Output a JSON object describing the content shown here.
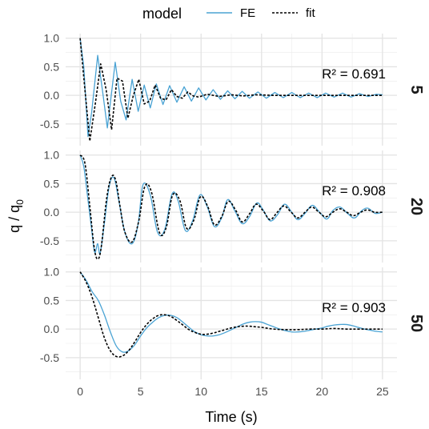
{
  "legend": {
    "title": "model",
    "entries": [
      {
        "label": "FE",
        "color": "#4aa3d4",
        "dash": "solid"
      },
      {
        "label": "fit",
        "color": "#000000",
        "dash": "dotted"
      }
    ]
  },
  "chart_data": {
    "type": "line",
    "xlabel": "Time (s)",
    "ylabel": "q / q0",
    "xlim": [
      -1.2,
      26.2
    ],
    "ylim": [
      -0.88,
      1.08
    ],
    "x_ticks": [
      "0",
      "5",
      "10",
      "15",
      "20",
      "25"
    ],
    "y_ticks": [
      "1.0",
      "0.5",
      "0.0",
      "-0.5"
    ],
    "grid": true,
    "legend_position": "top",
    "panels": [
      {
        "strip": "5",
        "r2_label": "R² = 0.691",
        "series": [
          {
            "name": "FE",
            "x": [
              0,
              0.3,
              0.65,
              0.95,
              1.45,
              1.9,
              2.25,
              2.9,
              3.35,
              3.8,
              4.3,
              4.8,
              5.3,
              5.8,
              6.3,
              6.85,
              7.4,
              8.0,
              8.6,
              9.2,
              9.8,
              10.4,
              11.0,
              11.6,
              12.2,
              12.8,
              13.4,
              14.0,
              14.7,
              15.4,
              16.1,
              16.8,
              17.5,
              18.2,
              18.9,
              19.6,
              20.3,
              21.0,
              21.7,
              22.4,
              23.1,
              23.8,
              24.5,
              25.0
            ],
            "y": [
              1.0,
              0.5,
              -0.72,
              -0.3,
              0.7,
              0.0,
              -0.57,
              0.58,
              -0.1,
              -0.43,
              0.28,
              -0.28,
              0.18,
              -0.22,
              0.2,
              -0.16,
              0.17,
              -0.12,
              0.15,
              -0.1,
              0.13,
              -0.08,
              0.1,
              -0.07,
              0.08,
              -0.06,
              0.07,
              -0.05,
              0.06,
              -0.05,
              0.05,
              -0.04,
              0.05,
              -0.04,
              0.04,
              -0.04,
              0.04,
              -0.03,
              0.04,
              -0.03,
              0.03,
              -0.02,
              0.02,
              0.01
            ]
          },
          {
            "name": "fit",
            "x": [
              0,
              0.35,
              0.8,
              1.25,
              1.7,
              2.15,
              2.6,
              3.05,
              3.5,
              3.95,
              4.4,
              4.85,
              5.3,
              5.75,
              6.2,
              6.65,
              7.1,
              7.55,
              8.0,
              8.45,
              8.9,
              9.35,
              9.8,
              10.5,
              11.5,
              12.5,
              13.5,
              14.5,
              16,
              18,
              20,
              22,
              25
            ],
            "y": [
              1.0,
              0.2,
              -0.8,
              -0.15,
              0.55,
              0.1,
              -0.6,
              0.3,
              0.25,
              -0.4,
              0.0,
              0.28,
              -0.15,
              -0.1,
              0.18,
              -0.05,
              -0.08,
              0.1,
              -0.02,
              -0.05,
              0.06,
              -0.01,
              -0.03,
              0.02,
              -0.02,
              0.01,
              -0.01,
              0.01,
              0.0,
              0.0,
              0.0,
              0.0,
              0.0
            ]
          }
        ]
      },
      {
        "strip": "20",
        "r2_label": "R² = 0.908",
        "series": [
          {
            "name": "FE",
            "x": [
              0,
              0.3,
              0.6,
              0.95,
              1.2,
              1.45,
              1.65,
              2.0,
              2.4,
              2.8,
              3.2,
              3.7,
              4.3,
              4.8,
              5.2,
              5.8,
              6.4,
              7.0,
              7.6,
              8.1,
              8.7,
              9.3,
              9.9,
              10.5,
              11.1,
              11.7,
              12.2,
              12.8,
              13.4,
              14.0,
              14.6,
              15.1,
              15.7,
              16.3,
              16.9,
              17.5,
              18.0,
              18.6,
              19.2,
              19.8,
              20.4,
              20.9,
              21.5,
              22.1,
              22.7,
              23.3,
              23.8,
              24.4,
              25.0
            ],
            "y": [
              1.0,
              0.8,
              0.3,
              -0.3,
              -0.7,
              -0.55,
              -0.72,
              -0.2,
              0.45,
              0.6,
              0.2,
              -0.35,
              -0.55,
              -0.2,
              0.48,
              0.3,
              -0.35,
              -0.3,
              0.32,
              0.2,
              -0.32,
              -0.15,
              0.3,
              0.1,
              -0.25,
              -0.1,
              0.22,
              0.02,
              -0.2,
              -0.08,
              0.16,
              0.05,
              -0.15,
              -0.05,
              0.14,
              0.0,
              -0.13,
              -0.02,
              0.12,
              0.0,
              -0.12,
              0.03,
              0.09,
              -0.02,
              -0.1,
              0.03,
              0.07,
              -0.02,
              0.0
            ],
            "smooth": true
          },
          {
            "name": "fit",
            "x": [
              0,
              0.4,
              0.8,
              1.15,
              1.45,
              1.75,
              2.2,
              2.6,
              2.95,
              3.3,
              3.7,
              4.3,
              4.85,
              5.35,
              5.9,
              6.55,
              7.1,
              7.65,
              8.25,
              8.8,
              9.4,
              9.95,
              10.55,
              11.1,
              11.7,
              12.25,
              12.85,
              13.4,
              14.0,
              14.55,
              15.15,
              15.7,
              16.3,
              16.85,
              17.45,
              18.0,
              18.6,
              19.15,
              19.75,
              20.3,
              20.9,
              21.45,
              22.05,
              22.6,
              23.2,
              23.75,
              24.35,
              25.0
            ],
            "y": [
              1.0,
              0.85,
              0.1,
              -0.6,
              -0.82,
              -0.6,
              0.25,
              0.62,
              0.55,
              0.1,
              -0.35,
              -0.52,
              -0.15,
              0.45,
              0.35,
              -0.35,
              -0.28,
              0.3,
              0.2,
              -0.28,
              -0.14,
              0.27,
              0.1,
              -0.22,
              -0.08,
              0.19,
              0.04,
              -0.17,
              -0.03,
              0.14,
              0.02,
              -0.13,
              0.0,
              0.11,
              0.0,
              -0.1,
              0.0,
              0.09,
              0.0,
              -0.08,
              0.0,
              0.06,
              0.0,
              -0.06,
              0.0,
              0.04,
              0.0,
              0.0
            ],
            "smooth": true
          }
        ]
      },
      {
        "strip": "50",
        "r2_label": "R² = 0.903",
        "series": [
          {
            "name": "FE",
            "x": [
              0,
              0.5,
              1.0,
              1.5,
              2.0,
              2.5,
              3.0,
              3.5,
              4.0,
              4.5,
              5.0,
              5.5,
              6.0,
              6.5,
              7.0,
              7.5,
              8.0,
              8.5,
              9.0,
              9.5,
              10,
              10.5,
              11,
              11.5,
              12,
              12.5,
              13,
              13.5,
              14,
              14.5,
              15,
              15.5,
              16,
              16.5,
              17,
              17.5,
              18,
              18.5,
              19,
              19.5,
              20,
              20.5,
              21,
              21.5,
              22,
              22.5,
              23,
              23.5,
              24,
              24.5,
              25
            ],
            "y": [
              1.0,
              0.85,
              0.65,
              0.5,
              0.25,
              -0.05,
              -0.3,
              -0.4,
              -0.38,
              -0.28,
              -0.12,
              0.02,
              0.12,
              0.2,
              0.24,
              0.24,
              0.2,
              0.12,
              0.03,
              -0.05,
              -0.1,
              -0.12,
              -0.12,
              -0.1,
              -0.06,
              -0.01,
              0.04,
              0.09,
              0.12,
              0.13,
              0.12,
              0.08,
              0.04,
              0.0,
              -0.03,
              -0.05,
              -0.05,
              -0.04,
              -0.02,
              0.0,
              0.02,
              0.05,
              0.07,
              0.08,
              0.08,
              0.06,
              0.03,
              0.0,
              -0.02,
              -0.04,
              -0.05
            ],
            "smooth": true
          },
          {
            "name": "fit",
            "x": [
              0,
              0.5,
              1.0,
              1.5,
              2.0,
              2.5,
              3.0,
              3.5,
              4.0,
              4.5,
              5.0,
              5.5,
              6.0,
              6.5,
              7.0,
              7.5,
              8.0,
              8.5,
              9.0,
              9.5,
              10,
              10.5,
              11,
              11.5,
              12,
              12.5,
              13,
              13.5,
              14,
              14.5,
              15,
              16,
              17,
              18,
              19,
              20,
              21,
              22,
              23,
              24,
              25
            ],
            "y": [
              1.0,
              0.82,
              0.55,
              0.2,
              -0.15,
              -0.38,
              -0.48,
              -0.47,
              -0.38,
              -0.23,
              -0.06,
              0.08,
              0.18,
              0.24,
              0.25,
              0.22,
              0.15,
              0.07,
              -0.01,
              -0.06,
              -0.09,
              -0.09,
              -0.07,
              -0.04,
              -0.01,
              0.02,
              0.04,
              0.05,
              0.05,
              0.04,
              0.03,
              0.0,
              -0.01,
              -0.01,
              0.0,
              0.0,
              0.01,
              0.0,
              0.0,
              0.0,
              0.0
            ],
            "smooth": true
          }
        ]
      }
    ]
  }
}
